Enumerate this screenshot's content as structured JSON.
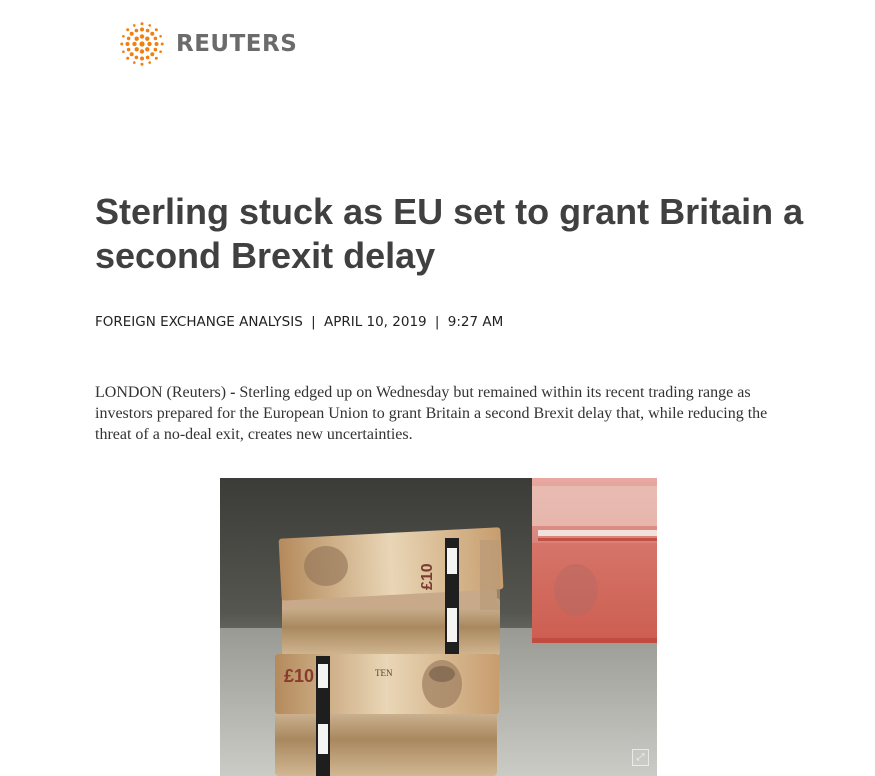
{
  "brand": {
    "name": "REUTERS",
    "accent_color": "#f07f0f"
  },
  "article": {
    "headline": "Sterling stuck as EU set to grant Britain a second Brexit delay",
    "meta": {
      "section": "FOREIGN EXCHANGE ANALYSIS",
      "date": "APRIL 10, 2019",
      "time": "9:27 AM",
      "separator": "|"
    },
    "lede": {
      "dateline": "LONDON (Reuters)",
      "dash": "-",
      "text": "Sterling edged up on Wednesday but remained within its recent trading range as investors prepared for the European Union to grant Britain a second Brexit delay that, while reducing the threat of a no-deal exit, creates new uncertainties."
    },
    "photo": {
      "subject": "stacks of banknotes",
      "expand_icon": "expand-icon"
    }
  }
}
